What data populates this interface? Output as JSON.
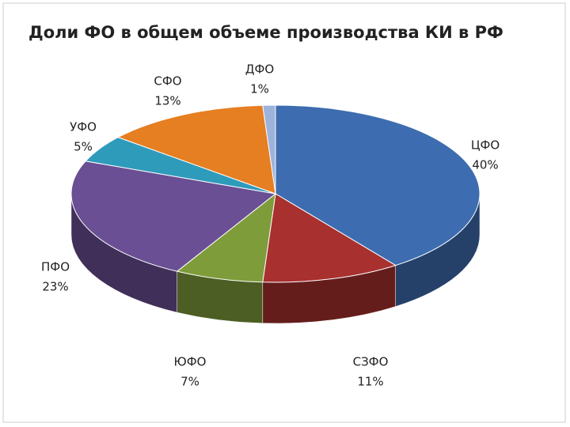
{
  "chart_data": {
    "type": "pie",
    "title": "Доли ФО в общем объеме производства  КИ в РФ",
    "categories": [
      "ЦФО",
      "СЗФО",
      "ЮФО",
      "ПФО",
      "УФО",
      "СФО",
      "ДФО"
    ],
    "values": [
      40,
      11,
      7,
      23,
      5,
      13,
      1
    ],
    "value_labels": [
      "40%",
      "11%",
      "7%",
      "23%",
      "5%",
      "13%",
      "1%"
    ],
    "colors": [
      "#3d6db0",
      "#a8302f",
      "#7e9c3a",
      "#6a4f94",
      "#2f9bbb",
      "#e67e22",
      "#9db3dc"
    ]
  }
}
